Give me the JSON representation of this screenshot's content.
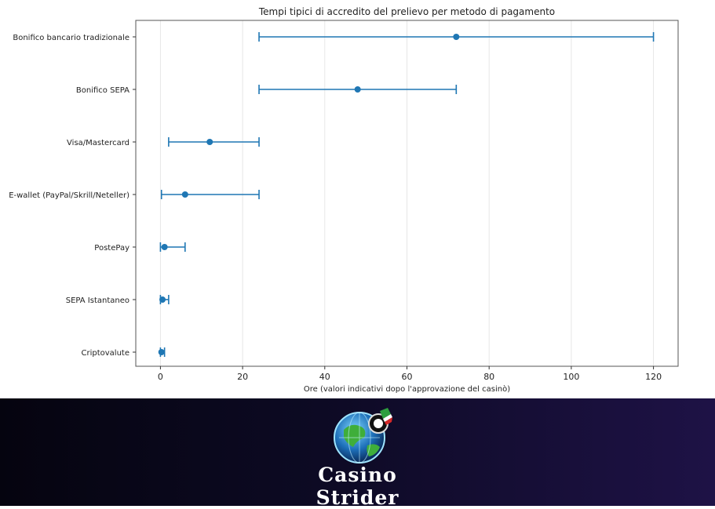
{
  "chart_data": {
    "type": "errorbar",
    "orientation": "horizontal",
    "title": "Tempi tipici di accredito del prelievo per metodo di pagamento",
    "xlabel": "Ore (valori indicativi dopo l'approvazione del casinò)",
    "ylabel": "",
    "xlim": [
      -6,
      126
    ],
    "xticks": [
      0,
      20,
      40,
      60,
      80,
      100,
      120
    ],
    "grid": "vertical",
    "series": [
      {
        "color": "#1f77b4",
        "points": [
          {
            "label": "Bonifico bancario tradizionale",
            "value": 72,
            "min": 24,
            "max": 120
          },
          {
            "label": "Bonifico SEPA",
            "value": 48,
            "min": 24,
            "max": 72
          },
          {
            "label": "Visa/Mastercard",
            "value": 12,
            "min": 2,
            "max": 24
          },
          {
            "label": "E-wallet (PayPal/Skrill/Neteller)",
            "value": 6,
            "min": 0.25,
            "max": 24
          },
          {
            "label": "PostePay",
            "value": 1,
            "min": 0,
            "max": 6
          },
          {
            "label": "SEPA Istantaneo",
            "value": 0.5,
            "min": 0,
            "max": 2
          },
          {
            "label": "Criptovalute",
            "value": 0.25,
            "min": 0,
            "max": 1
          }
        ]
      }
    ]
  },
  "banner": {
    "brand_line1": "Casino",
    "brand_line2": "Strider",
    "background": "#0d0a24",
    "logo_icon": "globe-chip-icon"
  }
}
